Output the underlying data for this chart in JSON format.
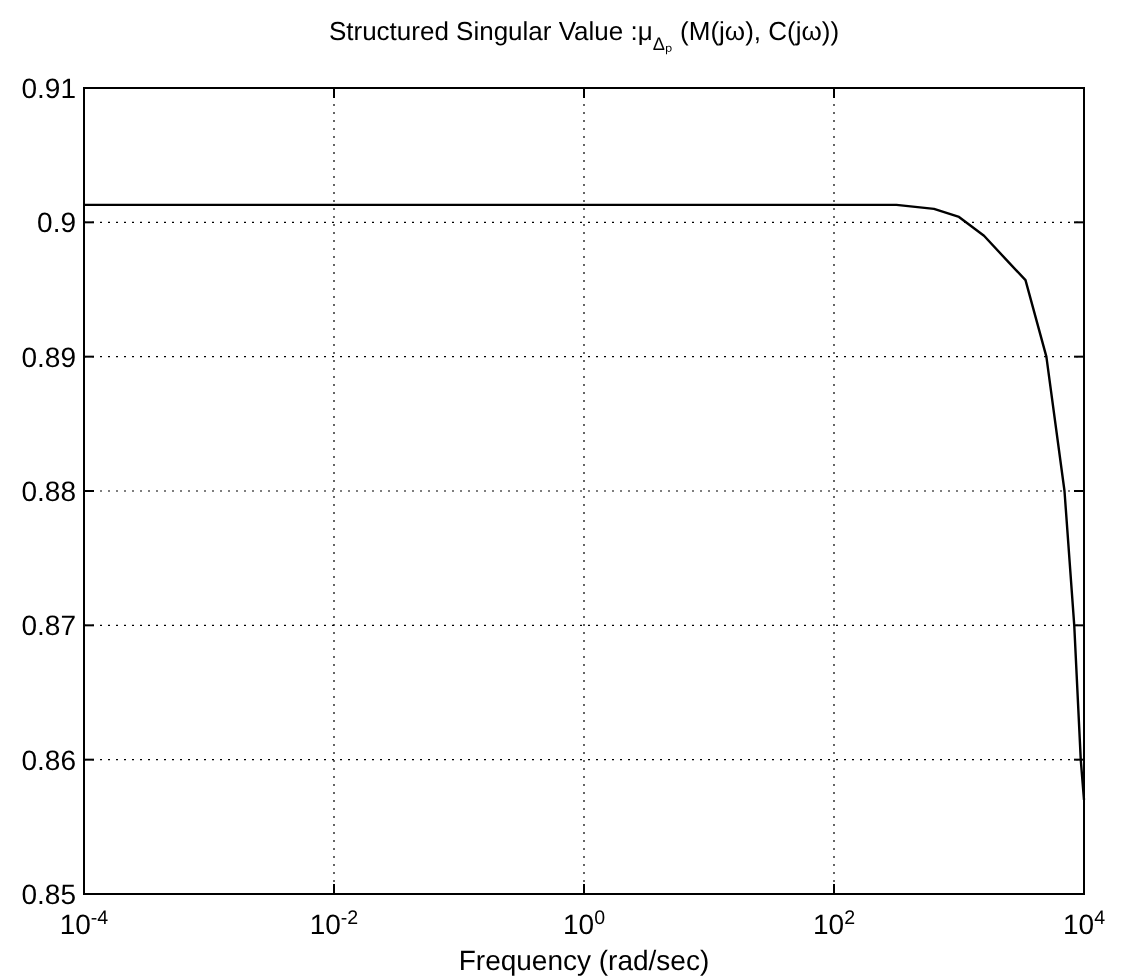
{
  "chart_data": {
    "type": "line",
    "title": "Structured Singular Value :μ$_{Δₚ}$ (M(jω), C(jω))",
    "xlabel": "Frequency (rad/sec)",
    "log": "x",
    "grid": true,
    "line_style": "solid",
    "marker": "none",
    "xlim": [
      0.0001,
      10000
    ],
    "ylim": [
      0.85,
      0.91
    ],
    "xticks": [
      {
        "value": 0.0001,
        "label": "10$^{-4}$"
      },
      {
        "value": 0.01,
        "label": "10$^{-2}$"
      },
      {
        "value": 1,
        "label": "10$^{0}$"
      },
      {
        "value": 100,
        "label": "10$^{2}$"
      },
      {
        "value": 10000,
        "label": "10$^{4}$"
      }
    ],
    "yticks": [
      0.85,
      0.86,
      0.87,
      0.88,
      0.89,
      0.9,
      0.91
    ],
    "series": [
      {
        "color": "#000000",
        "x": [
          0.0001,
          0.01,
          1,
          100,
          316,
          631,
          1000,
          1585,
          2512,
          3404,
          5000,
          6982,
          8356,
          9419,
          10000
        ],
        "values": [
          0.9013,
          0.9013,
          0.9013,
          0.9013,
          0.9013,
          0.901,
          0.9004,
          0.899,
          0.897,
          0.8957,
          0.89,
          0.88,
          0.87,
          0.86,
          0.857
        ]
      }
    ]
  }
}
